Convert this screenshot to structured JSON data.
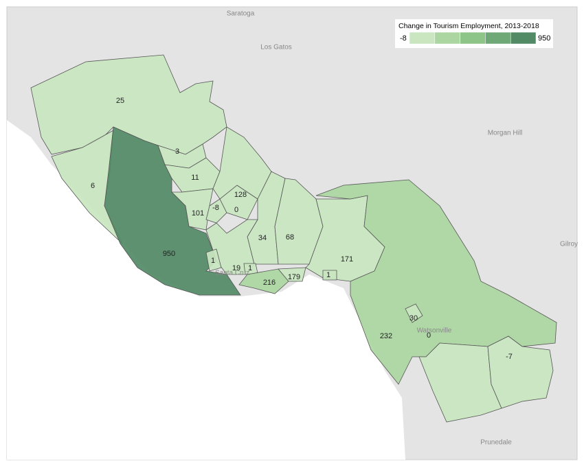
{
  "legend": {
    "title": "Change in Tourism Employment, 2013-2018",
    "min": -8,
    "max": 950,
    "colors": [
      "#c9e6c0",
      "#abd6a1",
      "#8dc487",
      "#6fa877",
      "#528a66"
    ]
  },
  "places": [
    "Saratoga",
    "Los Gatos",
    "Morgan Hill",
    "Watsonville",
    "Gilroy",
    "Prunedale",
    "Santa Cruz"
  ],
  "regions": [
    {
      "value": 25
    },
    {
      "value": 6
    },
    {
      "value": 950
    },
    {
      "value": 3
    },
    {
      "value": 11
    },
    {
      "value": 101
    },
    {
      "value": -8
    },
    {
      "value": 0
    },
    {
      "value": 128
    },
    {
      "value": 34
    },
    {
      "value": 68
    },
    {
      "value": 19
    },
    {
      "value": 1
    },
    {
      "value": 1
    },
    {
      "value": 216
    },
    {
      "value": 179
    },
    {
      "value": 171
    },
    {
      "value": 1
    },
    {
      "value": 232
    },
    {
      "value": 30
    },
    {
      "value": 0
    },
    {
      "value": -7
    }
  ]
}
